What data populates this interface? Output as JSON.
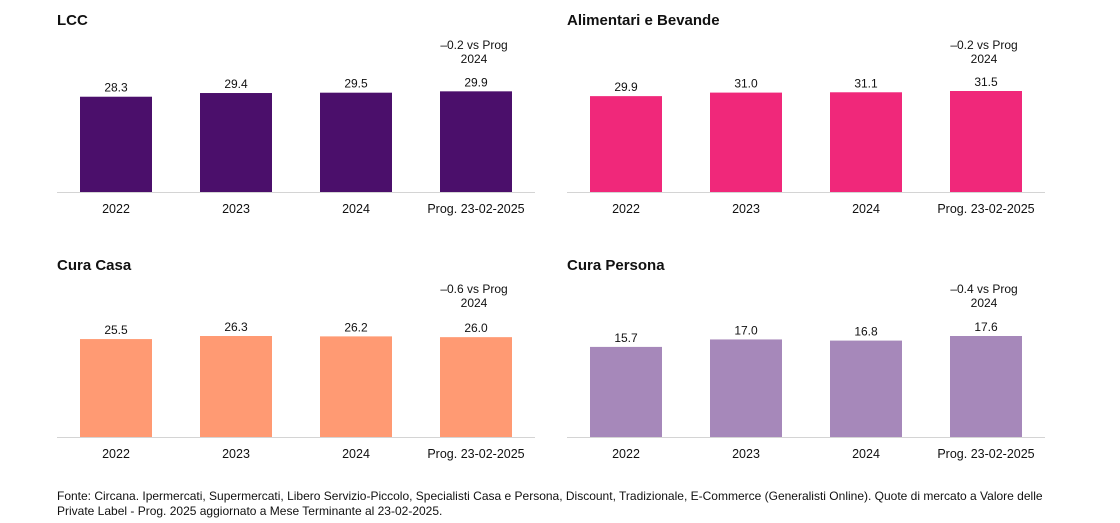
{
  "chart_data": [
    {
      "type": "bar",
      "title": "LCC",
      "categories": [
        "2022",
        "2023",
        "2024",
        "Prog. 23-02-2025"
      ],
      "values": [
        28.3,
        29.4,
        29.5,
        29.9
      ],
      "data_labels": [
        "28.3",
        "29.4",
        "29.5",
        "29.9"
      ],
      "annotation": [
        "–0.2 vs Prog",
        "2024"
      ],
      "color": "#4b0f6b",
      "ylim": [
        0,
        30
      ],
      "grid": false
    },
    {
      "type": "bar",
      "title": "Alimentari e Bevande",
      "categories": [
        "2022",
        "2023",
        "2024",
        "Prog. 23-02-2025"
      ],
      "values": [
        29.9,
        31.0,
        31.1,
        31.5
      ],
      "data_labels": [
        "29.9",
        "31.0",
        "31.1",
        "31.5"
      ],
      "annotation": [
        "–0.2 vs Prog",
        "2024"
      ],
      "color": "#f0287a",
      "ylim": [
        0,
        31.5
      ],
      "grid": false
    },
    {
      "type": "bar",
      "title": "Cura Casa",
      "categories": [
        "2022",
        "2023",
        "2024",
        "Prog. 23-02-2025"
      ],
      "values": [
        25.5,
        26.3,
        26.2,
        26.0
      ],
      "data_labels": [
        "25.5",
        "26.3",
        "26.2",
        "26.0"
      ],
      "annotation": [
        "–0.6 vs Prog",
        "2024"
      ],
      "color": "#ff9a73",
      "ylim": [
        0,
        26.3
      ],
      "grid": false
    },
    {
      "type": "bar",
      "title": "Cura Persona",
      "categories": [
        "2022",
        "2023",
        "2024",
        "Prog. 23-02-2025"
      ],
      "values": [
        15.7,
        17.0,
        16.8,
        17.6
      ],
      "data_labels": [
        "15.7",
        "17.0",
        "16.8",
        "17.6"
      ],
      "annotation": [
        "–0.4 vs Prog",
        "2024"
      ],
      "color": "#a688ba",
      "ylim": [
        0,
        17.6
      ],
      "grid": false
    }
  ],
  "footnote": "Fonte: Circana. Ipermercati, Supermercati, Libero Servizio-Piccolo, Specialisti Casa e Persona, Discount, Tradizionale, E-Commerce (Generalisti Online). Quote di mercato a Valore delle Private Label - Prog. 2025 aggiornato a Mese Terminante al 23-02-2025."
}
